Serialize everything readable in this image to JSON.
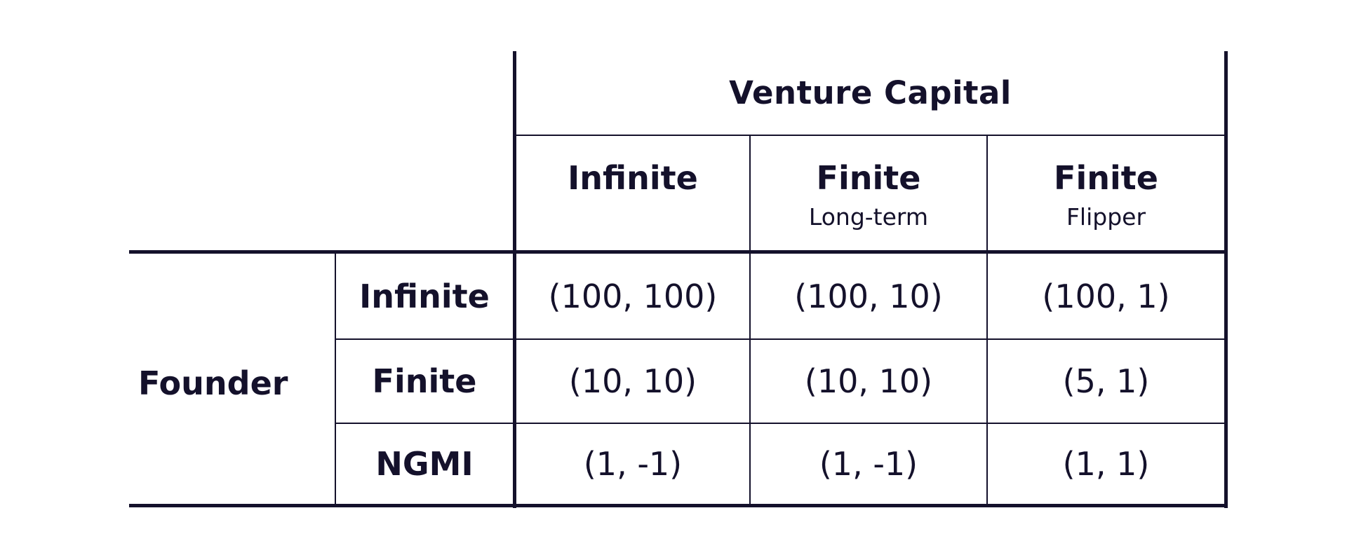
{
  "table": {
    "column_group_title": "Venture Capital",
    "row_group_title": "Founder",
    "columns": [
      {
        "label": "Infinite",
        "sublabel": ""
      },
      {
        "label": "Finite",
        "sublabel": "Long-term"
      },
      {
        "label": "Finite",
        "sublabel": "Flipper"
      }
    ],
    "rows": [
      {
        "label": "Infinite",
        "cells": [
          "(100, 100)",
          "(100, 10)",
          "(100, 1)"
        ]
      },
      {
        "label": "Finite",
        "cells": [
          "(10, 10)",
          "(10, 10)",
          "(5, 1)"
        ]
      },
      {
        "label": "NGMI",
        "cells": [
          "(1, -1)",
          "(1, -1)",
          "(1, 1)"
        ]
      }
    ]
  }
}
